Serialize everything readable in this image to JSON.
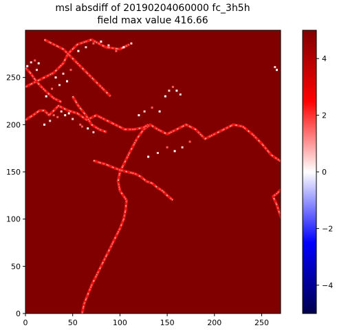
{
  "chart_data": {
    "type": "heatmap",
    "title_line1": "msl absdiff of 20190204060000 fc_3h5h",
    "title_line2": "field max value 416.66",
    "xlim": [
      0,
      270
    ],
    "ylim": [
      0,
      300
    ],
    "x_ticks": [
      0,
      50,
      100,
      150,
      200,
      250
    ],
    "y_ticks": [
      0,
      50,
      100,
      150,
      200,
      250
    ],
    "colorbar": {
      "range": [
        -5,
        5
      ],
      "ticks": [
        4,
        2,
        0,
        -2,
        -4
      ],
      "tick_labels": [
        "4",
        "2",
        "0",
        "−2",
        "−4"
      ],
      "colormap": "seismic"
    },
    "colors": {
      "saturated": "#800000",
      "medium": "#e8140f",
      "light": "#ff5a5a",
      "pale": "#ffd2d2",
      "white": "#ffffff",
      "deep_blue": "#00004c"
    },
    "low_value_paths": [
      [
        [
          60,
          0
        ],
        [
          62,
          10
        ],
        [
          66,
          20
        ],
        [
          70,
          30
        ],
        [
          75,
          40
        ],
        [
          80,
          50
        ],
        [
          85,
          60
        ],
        [
          90,
          70
        ],
        [
          95,
          80
        ],
        [
          100,
          90
        ],
        [
          104,
          100
        ],
        [
          106,
          110
        ],
        [
          107,
          120
        ],
        [
          100,
          130
        ],
        [
          98,
          140
        ],
        [
          100,
          150
        ],
        [
          105,
          160
        ],
        [
          110,
          170
        ],
        [
          118,
          185
        ],
        [
          125,
          195
        ],
        [
          132,
          200
        ],
        [
          140,
          195
        ],
        [
          150,
          190
        ],
        [
          160,
          195
        ],
        [
          170,
          200
        ],
        [
          180,
          195
        ],
        [
          190,
          185
        ],
        [
          200,
          190
        ],
        [
          210,
          195
        ],
        [
          220,
          200
        ],
        [
          230,
          198
        ],
        [
          240,
          190
        ],
        [
          250,
          180
        ],
        [
          260,
          168
        ],
        [
          272,
          160
        ],
        [
          283,
          158
        ],
        [
          292,
          155
        ],
        [
          291,
          150
        ],
        [
          286,
          147
        ],
        [
          278,
          140
        ],
        [
          271,
          132
        ],
        [
          266,
          127
        ],
        [
          262,
          124
        ],
        [
          266,
          115
        ],
        [
          271,
          100
        ],
        [
          276,
          90
        ],
        [
          281,
          80
        ],
        [
          286,
          70
        ],
        [
          296,
          60
        ],
        [
          306,
          50
        ],
        [
          316,
          40
        ],
        [
          326,
          30
        ],
        [
          341,
          25
        ],
        [
          356,
          18
        ],
        [
          366,
          10
        ],
        [
          372,
          0
        ]
      ],
      [
        [
          0,
          205
        ],
        [
          8,
          210
        ],
        [
          15,
          215
        ],
        [
          20,
          215
        ],
        [
          25,
          210
        ],
        [
          35,
          220
        ],
        [
          45,
          215
        ],
        [
          55,
          212
        ],
        [
          65,
          205
        ],
        [
          75,
          210
        ],
        [
          85,
          205
        ],
        [
          95,
          200
        ],
        [
          105,
          195
        ],
        [
          115,
          195
        ],
        [
          125,
          197
        ],
        [
          130,
          200
        ]
      ],
      [
        [
          0,
          240
        ],
        [
          10,
          245
        ],
        [
          20,
          250
        ],
        [
          30,
          255
        ],
        [
          40,
          265
        ],
        [
          45,
          275
        ],
        [
          55,
          285
        ],
        [
          70,
          290
        ],
        [
          85,
          282
        ],
        [
          100,
          280
        ],
        [
          110,
          285
        ]
      ],
      [
        [
          20,
          290
        ],
        [
          30,
          285
        ],
        [
          40,
          280
        ],
        [
          50,
          270
        ],
        [
          60,
          260
        ],
        [
          70,
          250
        ],
        [
          80,
          240
        ],
        [
          90,
          230
        ]
      ],
      [
        [
          0,
          260
        ],
        [
          5,
          255
        ],
        [
          10,
          248
        ],
        [
          15,
          242
        ],
        [
          22,
          235
        ],
        [
          30,
          228
        ],
        [
          38,
          224
        ]
      ],
      [
        [
          50,
          230
        ],
        [
          56,
          220
        ],
        [
          64,
          210
        ],
        [
          70,
          200
        ],
        [
          78,
          195
        ],
        [
          86,
          192
        ]
      ],
      [
        [
          72,
          162
        ],
        [
          78,
          160
        ],
        [
          85,
          158
        ],
        [
          92,
          155
        ],
        [
          100,
          152
        ],
        [
          108,
          150
        ],
        [
          116,
          148
        ],
        [
          122,
          145
        ],
        [
          128,
          140
        ],
        [
          134,
          138
        ],
        [
          140,
          133
        ],
        [
          145,
          130
        ],
        [
          150,
          125
        ],
        [
          156,
          120
        ]
      ]
    ],
    "low_value_clusters": [
      [
        [
          2,
          262
        ],
        [
          6,
          266
        ],
        [
          10,
          268
        ],
        [
          14,
          265
        ],
        [
          12,
          258
        ]
      ],
      [
        [
          32,
          250
        ],
        [
          40,
          254
        ],
        [
          48,
          258
        ],
        [
          44,
          246
        ],
        [
          36,
          242
        ],
        [
          28,
          238
        ],
        [
          22,
          230
        ]
      ],
      [
        [
          20,
          200
        ],
        [
          26,
          204
        ],
        [
          34,
          208
        ],
        [
          42,
          210
        ],
        [
          50,
          206
        ],
        [
          58,
          200
        ],
        [
          66,
          196
        ],
        [
          72,
          192
        ],
        [
          60,
          198
        ],
        [
          46,
          212
        ],
        [
          38,
          214
        ],
        [
          30,
          210
        ]
      ],
      [
        [
          56,
          278
        ],
        [
          64,
          282
        ],
        [
          72,
          286
        ],
        [
          80,
          288
        ],
        [
          88,
          284
        ],
        [
          96,
          278
        ],
        [
          104,
          282
        ],
        [
          112,
          286
        ]
      ],
      [
        [
          148,
          230
        ],
        [
          152,
          236
        ],
        [
          156,
          240
        ],
        [
          160,
          236
        ],
        [
          164,
          232
        ]
      ],
      [
        [
          266,
          258
        ],
        [
          264,
          261
        ]
      ],
      [
        [
          130,
          166
        ],
        [
          140,
          170
        ],
        [
          150,
          176
        ],
        [
          158,
          172
        ],
        [
          166,
          176
        ],
        [
          174,
          182
        ]
      ],
      [
        [
          120,
          210
        ],
        [
          126,
          214
        ],
        [
          134,
          218
        ],
        [
          142,
          214
        ]
      ]
    ]
  }
}
